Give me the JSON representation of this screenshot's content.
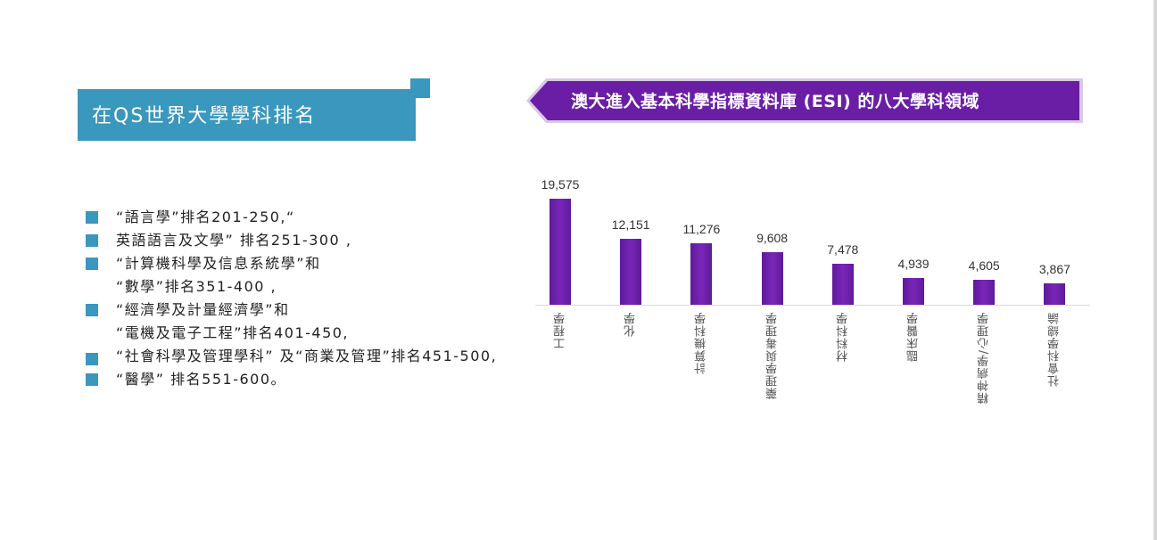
{
  "left_panel": {
    "title": "在QS世界大學學科排名",
    "items": [
      {
        "lines": [
          "“語言學”排名201-250,“"
        ]
      },
      {
        "lines": [
          "英語語言及文學” 排名251-300 ,"
        ]
      },
      {
        "lines": [
          "“計算機科學及信息系統學”和",
          "“數學”排名351-400 ,"
        ]
      },
      {
        "lines": [
          "“經濟學及計量經濟學”和",
          "“電機及電子工程”排名401-450,"
        ]
      },
      {
        "lines": [
          "“社會科學及管理學科” 及“商業及管理”排名451-500,"
        ]
      },
      {
        "lines": [
          "“醫學” 排名551-600。"
        ]
      }
    ],
    "accent_color": "#3a97bd"
  },
  "chart_data": {
    "type": "bar",
    "title": "澳大進入基本科學指標資料庫 (ESI) 的八大學科領域",
    "categories": [
      "工程學",
      "化學",
      "計算機科學",
      "藥理學與毒理學",
      "材料科學",
      "臨床醫學",
      "精神病學/心理學",
      "社會科學總論"
    ],
    "values": [
      19575,
      12151,
      11276,
      9608,
      7478,
      4939,
      4605,
      3867
    ],
    "value_labels": [
      "19,575",
      "12,151",
      "11,276",
      "9,608",
      "7,478",
      "4,939",
      "4,605",
      "3,867"
    ],
    "xlabel": "",
    "ylabel": "",
    "ylim": [
      0,
      20000
    ],
    "grid": false,
    "legend": null,
    "bar_color": "#6a1ea6",
    "title_banner_color": "#6a1ea6"
  }
}
